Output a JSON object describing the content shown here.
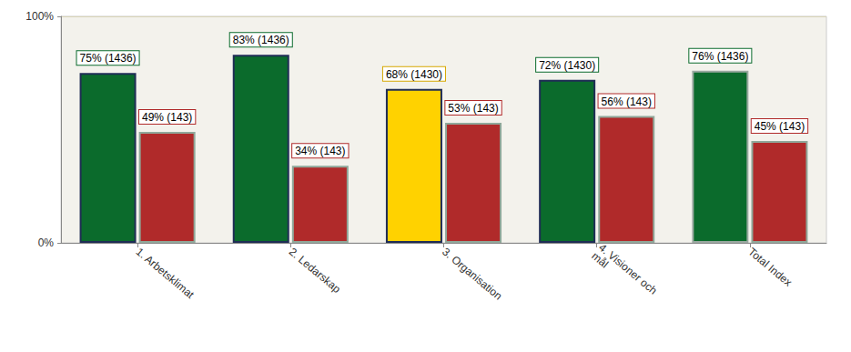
{
  "chart_data": {
    "type": "bar",
    "categories": [
      "1. Arbetsklimat",
      "2. Ledarskap",
      "3. Organisation",
      "4. Visioner och mål",
      "Total Index"
    ],
    "series": [
      {
        "values": [
          75,
          83,
          68,
          72,
          76
        ],
        "colors": [
          "#0b6b2c",
          "#0b6b2c",
          "#ffd200",
          "#0b6b2c",
          "#0b6b2c"
        ],
        "value_labels": [
          "75% (1436)",
          "83% (1436)",
          "68% (1430)",
          "72% (1430)",
          "76% (1436)"
        ]
      },
      {
        "values": [
          49,
          34,
          53,
          56,
          45
        ],
        "color": "#b02a2a",
        "value_labels": [
          "49% (143)",
          "34% (143)",
          "53% (143)",
          "56% (143)",
          "45% (143)"
        ]
      }
    ],
    "ylim": [
      0,
      100
    ],
    "yticks": [
      {
        "value": 0,
        "label": "0%"
      },
      {
        "value": 100,
        "label": "100%"
      }
    ],
    "grid": true,
    "data_labels": true
  }
}
